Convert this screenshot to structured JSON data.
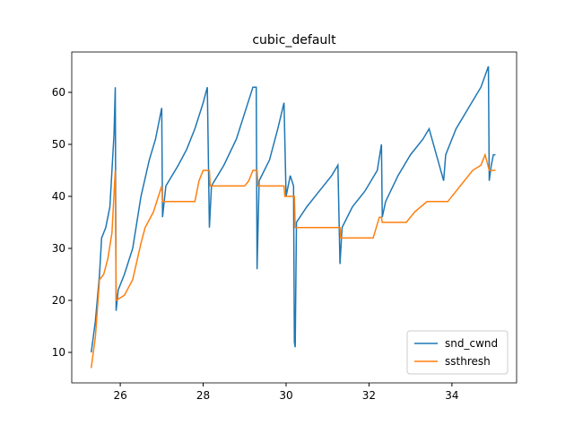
{
  "chart_data": {
    "type": "line",
    "title": "cubic_default",
    "xlim": [
      24.83,
      35.56
    ],
    "ylim": [
      4.14,
      67.76
    ],
    "xticks": [
      26,
      28,
      30,
      32,
      34
    ],
    "yticks": [
      10,
      20,
      30,
      40,
      50,
      60
    ],
    "legend": "lower right",
    "series": [
      {
        "name": "snd_cwnd",
        "color": "#1f77b4",
        "x": [
          25.3,
          25.4,
          25.5,
          25.55,
          25.65,
          25.75,
          25.8,
          25.85,
          25.88,
          25.9,
          25.95,
          26.1,
          26.3,
          26.5,
          26.7,
          26.85,
          27.0,
          27.02,
          27.1,
          27.4,
          27.6,
          27.8,
          28.0,
          28.1,
          28.15,
          28.2,
          28.5,
          28.8,
          29.0,
          29.2,
          29.28,
          29.3,
          29.35,
          29.6,
          29.8,
          29.95,
          30.0,
          30.1,
          30.18,
          30.2,
          30.22,
          30.25,
          30.5,
          30.8,
          31.1,
          31.25,
          31.3,
          31.35,
          31.6,
          31.9,
          32.2,
          32.3,
          32.32,
          32.4,
          32.7,
          33.0,
          33.3,
          33.45,
          33.8,
          33.85,
          34.1,
          34.4,
          34.7,
          34.88,
          34.9,
          34.95,
          35.0,
          35.05
        ],
        "values": [
          10,
          16,
          25,
          32,
          34,
          38,
          45,
          52,
          61,
          18,
          22,
          25,
          30,
          40,
          47,
          51,
          57,
          36,
          42,
          46,
          49,
          53,
          58,
          61,
          34,
          42,
          46,
          51,
          56,
          61,
          61,
          26,
          43,
          47,
          53,
          58,
          40,
          44,
          42,
          12,
          11,
          35,
          38,
          41,
          44,
          46,
          27,
          34,
          38,
          41,
          45,
          50,
          36,
          39,
          44,
          48,
          51,
          53,
          43,
          48,
          53,
          57,
          61,
          65,
          43,
          46,
          48,
          48
        ]
      },
      {
        "name": "ssthresh",
        "color": "#ff7f0e",
        "x": [
          25.3,
          25.4,
          25.5,
          25.6,
          25.7,
          25.8,
          25.88,
          25.9,
          26.1,
          26.3,
          26.5,
          26.6,
          26.8,
          27.0,
          27.02,
          27.8,
          27.9,
          28.0,
          28.15,
          28.17,
          29.0,
          29.1,
          29.2,
          29.3,
          29.32,
          29.95,
          29.97,
          30.2,
          30.22,
          31.3,
          31.32,
          32.1,
          32.25,
          32.3,
          32.32,
          32.9,
          33.1,
          33.4,
          33.9,
          34.1,
          34.3,
          34.5,
          34.7,
          34.8,
          34.9,
          35.05
        ],
        "values": [
          7,
          13,
          24,
          25,
          28,
          33,
          45,
          20,
          21,
          24,
          31,
          34,
          37,
          42,
          39,
          39,
          43,
          45,
          45,
          42,
          42,
          43,
          45,
          45,
          42,
          42,
          40,
          40,
          34,
          34,
          32,
          32,
          36,
          36,
          35,
          35,
          37,
          39,
          39,
          41,
          43,
          45,
          46,
          48,
          45,
          45
        ]
      }
    ]
  }
}
